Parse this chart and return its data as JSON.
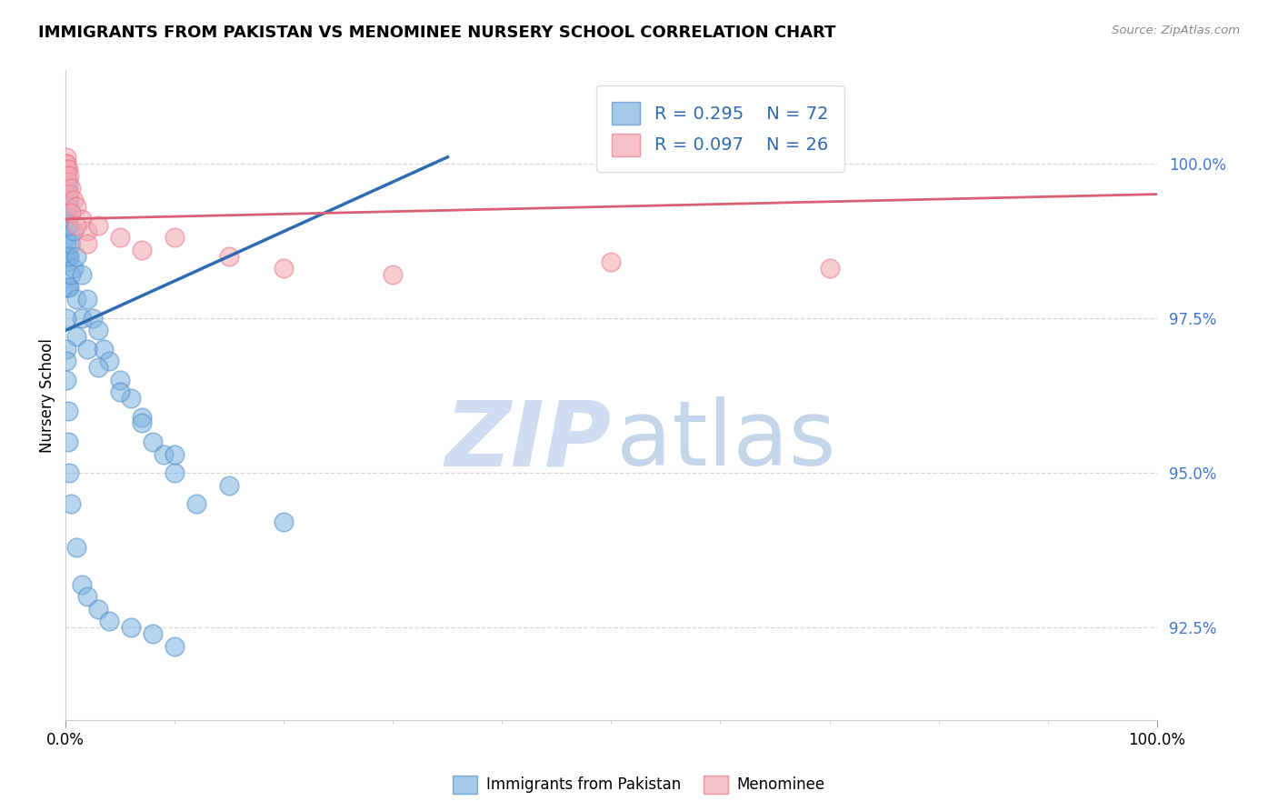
{
  "title": "IMMIGRANTS FROM PAKISTAN VS MENOMINEE NURSERY SCHOOL CORRELATION CHART",
  "source": "Source: ZipAtlas.com",
  "ylabel": "Nursery School",
  "ytick_values": [
    100.0,
    97.5,
    95.0,
    92.5
  ],
  "xlim": [
    0.0,
    100.0
  ],
  "ylim": [
    91.0,
    101.5
  ],
  "legend_blue_r": "R = 0.295",
  "legend_blue_n": "N = 72",
  "legend_pink_r": "R = 0.097",
  "legend_pink_n": "N = 26",
  "legend_label_blue": "Immigrants from Pakistan",
  "legend_label_pink": "Menominee",
  "blue_color": "#7FB3E0",
  "pink_color": "#F4A7B2",
  "blue_edge_color": "#5590C8",
  "pink_edge_color": "#E8788A",
  "blue_line_color": "#2E6BB0",
  "pink_line_color": "#D95F75",
  "blue_scatter_x": [
    0.05,
    0.05,
    0.05,
    0.05,
    0.05,
    0.05,
    0.05,
    0.05,
    0.05,
    0.05,
    0.1,
    0.1,
    0.1,
    0.1,
    0.1,
    0.1,
    0.1,
    0.1,
    0.2,
    0.2,
    0.2,
    0.2,
    0.2,
    0.3,
    0.3,
    0.3,
    0.3,
    0.5,
    0.5,
    0.5,
    0.7,
    0.7,
    1.0,
    1.0,
    1.5,
    1.5,
    2.0,
    2.5,
    3.0,
    3.5,
    4.0,
    5.0,
    6.0,
    7.0,
    8.0,
    9.0,
    10.0,
    12.0,
    1.0,
    2.0,
    3.0,
    5.0,
    7.0,
    10.0,
    15.0,
    20.0,
    0.05,
    0.05,
    0.1,
    0.1,
    0.2,
    0.2,
    0.3,
    0.5,
    1.0,
    1.5,
    2.0,
    3.0,
    4.0,
    6.0,
    8.0,
    10.0
  ],
  "blue_scatter_y": [
    99.9,
    99.8,
    99.7,
    99.6,
    99.5,
    99.4,
    99.3,
    99.2,
    98.8,
    98.5,
    99.8,
    99.7,
    99.5,
    99.3,
    99.0,
    98.7,
    98.4,
    98.0,
    99.6,
    99.3,
    99.0,
    98.5,
    98.0,
    99.4,
    99.0,
    98.5,
    98.0,
    99.2,
    98.7,
    98.2,
    98.9,
    98.3,
    98.5,
    97.8,
    98.2,
    97.5,
    97.8,
    97.5,
    97.3,
    97.0,
    96.8,
    96.5,
    96.2,
    95.9,
    95.5,
    95.3,
    95.0,
    94.5,
    97.2,
    97.0,
    96.7,
    96.3,
    95.8,
    95.3,
    94.8,
    94.2,
    97.5,
    97.0,
    96.8,
    96.5,
    96.0,
    95.5,
    95.0,
    94.5,
    93.8,
    93.2,
    93.0,
    92.8,
    92.6,
    92.5,
    92.4,
    92.2
  ],
  "pink_scatter_x": [
    0.05,
    0.05,
    0.05,
    0.1,
    0.1,
    0.2,
    0.2,
    0.3,
    0.3,
    0.5,
    0.7,
    1.0,
    1.5,
    2.0,
    3.0,
    5.0,
    7.0,
    10.0,
    15.0,
    20.0,
    30.0,
    50.0,
    70.0,
    0.5,
    1.0,
    2.0
  ],
  "pink_scatter_y": [
    100.1,
    100.0,
    99.9,
    100.0,
    99.8,
    99.9,
    99.7,
    99.8,
    99.5,
    99.6,
    99.4,
    99.3,
    99.1,
    98.9,
    99.0,
    98.8,
    98.6,
    98.8,
    98.5,
    98.3,
    98.2,
    98.4,
    98.3,
    99.2,
    99.0,
    98.7
  ],
  "blue_trendline_x0": 0.0,
  "blue_trendline_y0": 97.3,
  "blue_trendline_x1": 35.0,
  "blue_trendline_y1": 100.1,
  "pink_trendline_x0": 0.0,
  "pink_trendline_y0": 99.1,
  "pink_trendline_x1": 100.0,
  "pink_trendline_y1": 99.5,
  "grid_color": "#CCCCCC",
  "grid_linestyle": "--",
  "title_fontsize": 13,
  "axis_label_fontsize": 12,
  "ytick_color": "#4477CC",
  "watermark_zip_color": "#C8D8EE",
  "watermark_atlas_color": "#A8C0E0"
}
